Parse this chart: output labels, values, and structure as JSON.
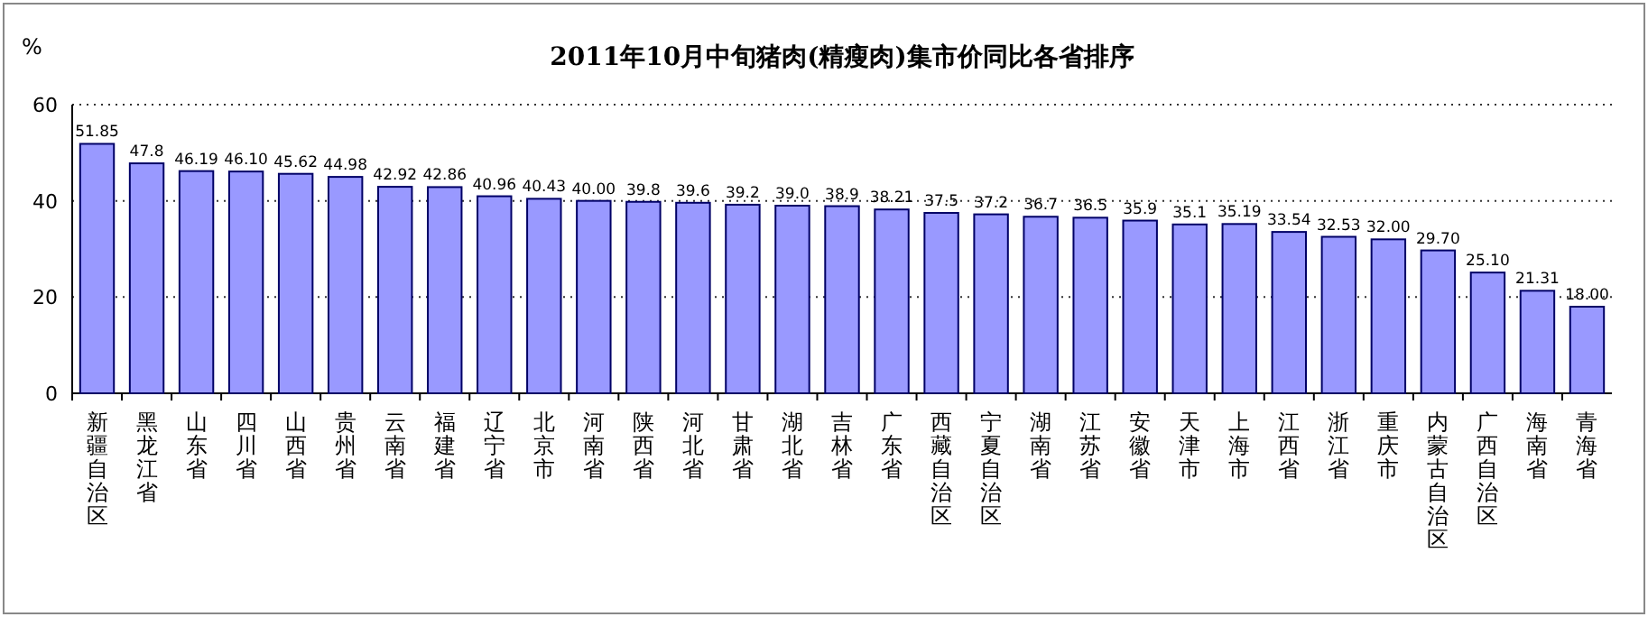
{
  "chart_data": {
    "type": "bar",
    "title": "2011年10月中旬猪肉(精瘦肉)集市价同比各省排序",
    "ylabel": "%",
    "categories": [
      "新疆自治区",
      "黑龙江省",
      "山东省",
      "四川省",
      "山西省",
      "贵州省",
      "云南省",
      "福建省",
      "辽宁省",
      "北京市",
      "河南省",
      "陕西省",
      "河北省",
      "甘肃省",
      "湖北省",
      "吉林省",
      "广东省",
      "西藏自治区",
      "宁夏自治区",
      "湖南省",
      "江苏省",
      "安徽省",
      "天津市",
      "上海市",
      "江西省",
      "浙江省",
      "重庆市",
      "内蒙古自治区",
      "广西自治区",
      "海南省",
      "青海省"
    ],
    "values": [
      51.85,
      47.8,
      46.19,
      46.1,
      45.62,
      44.98,
      42.92,
      42.86,
      40.96,
      40.43,
      40.0,
      39.8,
      39.6,
      39.2,
      39.0,
      38.9,
      38.21,
      37.5,
      37.2,
      36.7,
      36.5,
      35.9,
      35.1,
      35.19,
      33.54,
      32.53,
      32.0,
      29.7,
      25.1,
      21.31,
      18.0
    ],
    "value_labels": [
      "51.85",
      "47.8",
      "46.19",
      "46.10",
      "45.62",
      "44.98",
      "42.92",
      "42.86",
      "40.96",
      "40.43",
      "40.00",
      "39.8",
      "39.6",
      "39.2",
      "39.0",
      "38.9",
      "38.21",
      "37.5",
      "37.2",
      "36.7",
      "36.5",
      "35.9",
      "35.1",
      "35.19",
      "33.54",
      "32.53",
      "32.00",
      "29.70",
      "25.10",
      "21.31",
      "18.00"
    ],
    "color": "#9999ff",
    "ylim": [
      0,
      60
    ],
    "yticks": [
      0,
      20,
      40,
      60
    ],
    "grid": "y"
  }
}
